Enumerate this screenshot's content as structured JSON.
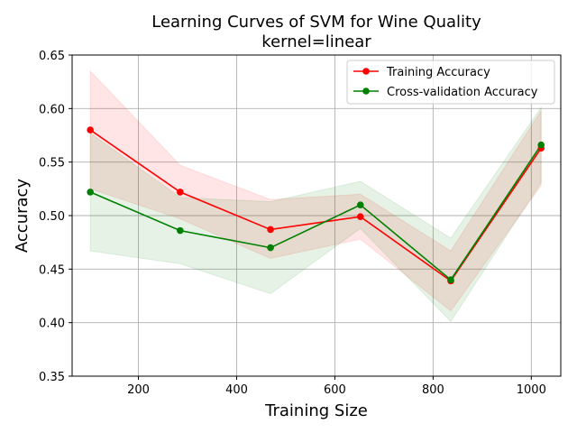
{
  "chart_data": {
    "type": "line",
    "title": "Learning Curves of SVM for Wine Quality",
    "subtitle": "kernel=linear",
    "xlabel": "Training Size",
    "ylabel": "Accuracy",
    "xlim": [
      65,
      1060
    ],
    "ylim": [
      0.35,
      0.65
    ],
    "xticks": [
      200,
      400,
      600,
      800,
      1000
    ],
    "yticks": [
      0.35,
      0.4,
      0.45,
      0.5,
      0.55,
      0.6,
      0.65
    ],
    "xtick_labels": [
      "200",
      "400",
      "600",
      "800",
      "1000"
    ],
    "ytick_labels": [
      "0.35",
      "0.40",
      "0.45",
      "0.50",
      "0.55",
      "0.60",
      "0.65"
    ],
    "grid": true,
    "legend_position": "top-right",
    "x": [
      102,
      285,
      469,
      652,
      836,
      1020
    ],
    "series": [
      {
        "name": "Training Accuracy",
        "color": "#ff0000",
        "values": [
          0.58,
          0.522,
          0.487,
          0.499,
          0.439,
          0.563
        ],
        "lower": [
          0.525,
          0.497,
          0.46,
          0.478,
          0.411,
          0.528
        ],
        "upper": [
          0.635,
          0.547,
          0.515,
          0.52,
          0.467,
          0.598
        ]
      },
      {
        "name": "Cross-validation Accuracy",
        "color": "#008000",
        "values": [
          0.522,
          0.486,
          0.47,
          0.51,
          0.44,
          0.566
        ],
        "lower": [
          0.467,
          0.455,
          0.427,
          0.488,
          0.401,
          0.531
        ],
        "upper": [
          0.577,
          0.517,
          0.513,
          0.532,
          0.479,
          0.601
        ]
      }
    ]
  }
}
